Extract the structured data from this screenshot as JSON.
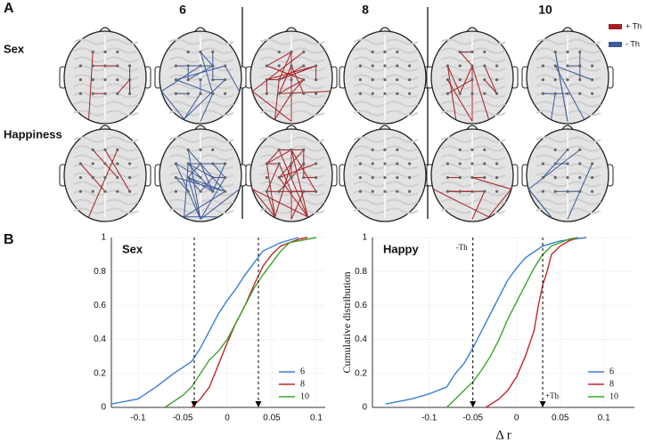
{
  "panel_labels": [
    "A",
    "B"
  ],
  "panel_a": {
    "columns": [
      "6",
      "8",
      "10"
    ],
    "rows": [
      "Sex",
      "Happiness"
    ],
    "legend": [
      {
        "label": "+ Th",
        "color": "#a31f24"
      },
      {
        "label": "- Th",
        "color": "#3d5a99"
      }
    ]
  },
  "chart_data": [
    {
      "type": "line",
      "title": "Sex",
      "xlim": [
        -0.13,
        0.11
      ],
      "ylim": [
        0,
        1
      ],
      "xticks": [
        -0.1,
        -0.05,
        0,
        0.05,
        0.1
      ],
      "yticks": [
        0,
        0.2,
        0.4,
        0.6,
        0.8,
        1
      ],
      "grid": true,
      "legend": "lower right",
      "thresholds": [
        -0.037,
        0.035
      ],
      "series": [
        {
          "name": "6",
          "color": "#3a7dd8",
          "x": [
            -0.13,
            -0.1,
            -0.08,
            -0.06,
            -0.04,
            -0.03,
            -0.02,
            -0.01,
            0,
            0.01,
            0.02,
            0.03,
            0.04,
            0.06,
            0.08
          ],
          "values": [
            0.02,
            0.05,
            0.12,
            0.2,
            0.27,
            0.35,
            0.45,
            0.55,
            0.63,
            0.7,
            0.78,
            0.85,
            0.92,
            0.97,
            1
          ]
        },
        {
          "name": "8",
          "color": "#c0262d",
          "x": [
            -0.04,
            -0.03,
            -0.02,
            -0.01,
            0,
            0.01,
            0.02,
            0.03,
            0.04,
            0.05,
            0.06,
            0.08,
            0.09
          ],
          "values": [
            0,
            0.05,
            0.12,
            0.25,
            0.38,
            0.5,
            0.6,
            0.72,
            0.83,
            0.9,
            0.95,
            0.99,
            1
          ]
        },
        {
          "name": "10",
          "color": "#3da32a",
          "x": [
            -0.07,
            -0.05,
            -0.04,
            -0.03,
            -0.02,
            -0.01,
            0,
            0.01,
            0.02,
            0.03,
            0.04,
            0.05,
            0.06,
            0.07,
            0.1
          ],
          "values": [
            0,
            0.07,
            0.12,
            0.2,
            0.28,
            0.33,
            0.4,
            0.5,
            0.6,
            0.7,
            0.78,
            0.85,
            0.92,
            0.97,
            1
          ]
        }
      ]
    },
    {
      "type": "line",
      "title": "Happy",
      "xlabel": "Δ r",
      "ylabel": "Cumulative distribution",
      "xlim": [
        -0.165,
        0.135
      ],
      "ylim": [
        0,
        1
      ],
      "xticks": [
        -0.1,
        -0.05,
        0,
        0.05,
        0.1
      ],
      "yticks": [
        0,
        0.2,
        0.4,
        0.6,
        0.8,
        1
      ],
      "grid": true,
      "legend": "lower right",
      "thresholds": [
        {
          "value": -0.05,
          "label": "-Th"
        },
        {
          "value": 0.03,
          "label": "+Th"
        }
      ],
      "series": [
        {
          "name": "6",
          "color": "#3a7dd8",
          "x": [
            -0.15,
            -0.12,
            -0.1,
            -0.08,
            -0.07,
            -0.06,
            -0.05,
            -0.04,
            -0.03,
            -0.02,
            -0.01,
            0,
            0.01,
            0.03,
            0.05,
            0.08
          ],
          "values": [
            0.02,
            0.05,
            0.08,
            0.12,
            0.2,
            0.26,
            0.35,
            0.45,
            0.55,
            0.65,
            0.75,
            0.82,
            0.88,
            0.95,
            0.98,
            1
          ]
        },
        {
          "name": "8",
          "color": "#c0262d",
          "x": [
            -0.035,
            -0.02,
            -0.01,
            0,
            0.01,
            0.02,
            0.025,
            0.03,
            0.035,
            0.04,
            0.05,
            0.06,
            0.07
          ],
          "values": [
            0,
            0.05,
            0.1,
            0.18,
            0.3,
            0.45,
            0.6,
            0.72,
            0.8,
            0.9,
            0.95,
            0.98,
            1
          ]
        },
        {
          "name": "10",
          "color": "#3da32a",
          "x": [
            -0.08,
            -0.07,
            -0.06,
            -0.05,
            -0.04,
            -0.03,
            -0.02,
            -0.01,
            0,
            0.01,
            0.02,
            0.03,
            0.04,
            0.06,
            0.07
          ],
          "values": [
            0,
            0.05,
            0.1,
            0.15,
            0.22,
            0.3,
            0.4,
            0.52,
            0.62,
            0.72,
            0.82,
            0.9,
            0.95,
            0.99,
            1
          ]
        }
      ]
    }
  ]
}
